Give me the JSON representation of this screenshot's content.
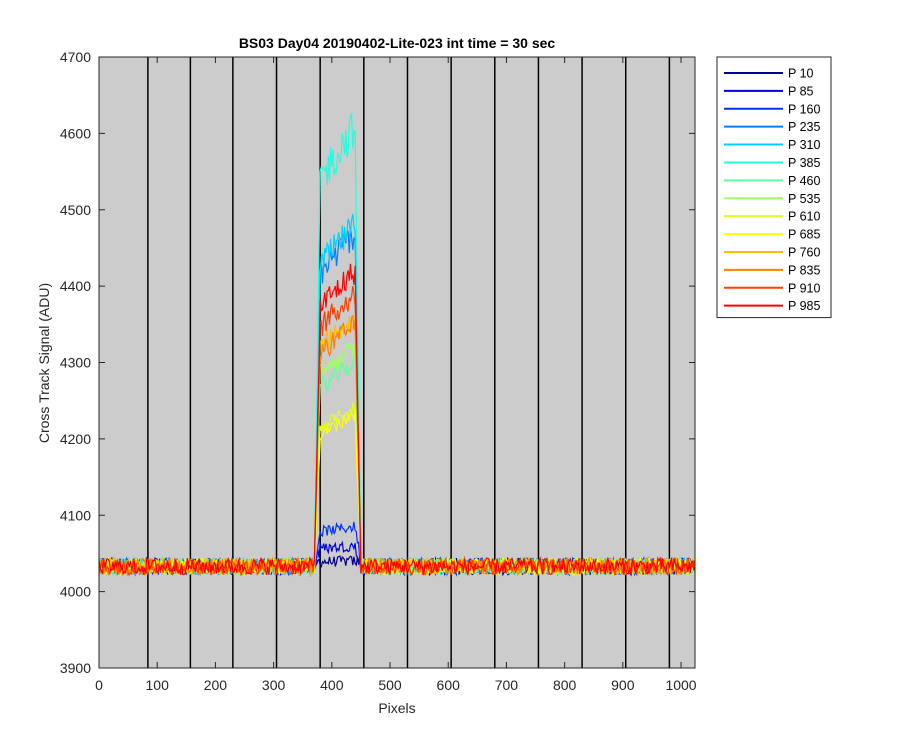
{
  "chart_data": {
    "type": "line",
    "title": "BS03 Day04 20190402-Lite-023 int time = 30 sec",
    "xlabel": "Pixels",
    "ylabel": "Cross Track Signal (ADU)",
    "xlim": [
      0,
      1024
    ],
    "ylim": [
      3900,
      4700
    ],
    "xticks": [
      "0",
      "100",
      "200",
      "300",
      "400",
      "500",
      "600",
      "700",
      "800",
      "900",
      "1000"
    ],
    "yticks": [
      "3900",
      "4000",
      "4100",
      "4200",
      "4300",
      "4400",
      "4500",
      "4600",
      "4700"
    ],
    "vertical_lines": [
      84,
      157,
      230,
      305,
      380,
      455,
      530,
      605,
      680,
      755,
      830,
      905,
      980
    ],
    "background_color": "#cccccc",
    "legend_position": "outside-right",
    "baseline": 4033,
    "baseline_noise": 11,
    "peak_x_range": [
      380,
      440
    ],
    "series": [
      {
        "name": "P 10",
        "color": "#00008f",
        "peak": 4040
      },
      {
        "name": "P 85",
        "color": "#0000df",
        "peak": 4060
      },
      {
        "name": "P 160",
        "color": "#0030ff",
        "peak": 4085
      },
      {
        "name": "P 235",
        "color": "#0080ff",
        "peak": 4470
      },
      {
        "name": "P 310",
        "color": "#00cfff",
        "peak": 4480
      },
      {
        "name": "P 385",
        "color": "#20ffdf",
        "peak": 4610
      },
      {
        "name": "P 460",
        "color": "#60ffa0",
        "peak": 4300
      },
      {
        "name": "P 535",
        "color": "#9fff60",
        "peak": 4320
      },
      {
        "name": "P 610",
        "color": "#dfff20",
        "peak": 4240
      },
      {
        "name": "P 685",
        "color": "#ffff00",
        "peak": 4230
      },
      {
        "name": "P 760",
        "color": "#ffbf00",
        "peak": 4360
      },
      {
        "name": "P 835",
        "color": "#ff7f00",
        "peak": 4350
      },
      {
        "name": "P 910",
        "color": "#ff3f00",
        "peak": 4390
      },
      {
        "name": "P 985",
        "color": "#ff0000",
        "peak": 4420
      }
    ]
  }
}
